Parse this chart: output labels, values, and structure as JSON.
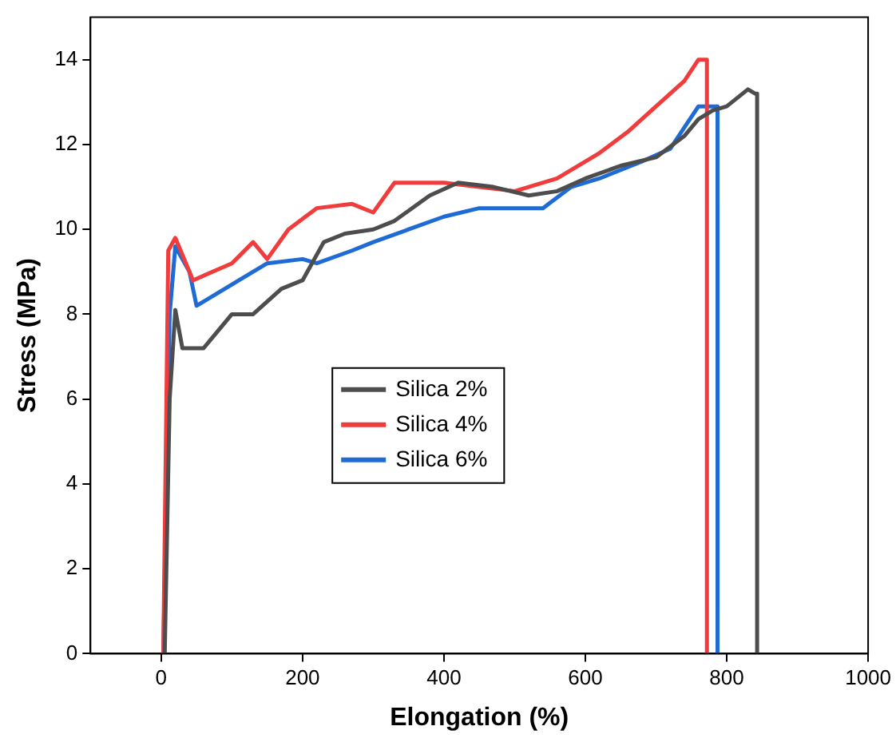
{
  "chart_data": {
    "type": "line",
    "xlabel": "Elongation (%)",
    "ylabel": "Stress (MPa)",
    "xlim": [
      -100,
      1000
    ],
    "xticks": [
      0,
      200,
      400,
      600,
      800,
      1000
    ],
    "ylim": [
      0,
      15
    ],
    "yticks": [
      0,
      2,
      4,
      6,
      8,
      10,
      12,
      14
    ],
    "grid": false,
    "legend": "center",
    "marker": "none",
    "line_style": "solid",
    "series": [
      {
        "name": "Silica 2%",
        "color": "#4d4d4d",
        "x": [
          5,
          12,
          20,
          30,
          60,
          80,
          100,
          130,
          170,
          200,
          230,
          260,
          300,
          330,
          380,
          420,
          470,
          520,
          560,
          600,
          650,
          700,
          740,
          760,
          780,
          800,
          830,
          840,
          843,
          843
        ],
        "values": [
          0,
          6,
          8.1,
          7.2,
          7.2,
          7.6,
          8,
          8,
          8.6,
          8.8,
          9.7,
          9.9,
          10,
          10.2,
          10.8,
          11.1,
          11,
          10.8,
          10.9,
          11.2,
          11.5,
          11.7,
          12.2,
          12.6,
          12.8,
          12.9,
          13.3,
          13.2,
          13.2,
          0
        ]
      },
      {
        "name": "Silica 4%",
        "color": "#f03c3c",
        "x": [
          3,
          10,
          20,
          45,
          100,
          130,
          150,
          180,
          220,
          270,
          300,
          330,
          400,
          450,
          500,
          560,
          620,
          660,
          700,
          740,
          760,
          770,
          772,
          772
        ],
        "values": [
          0,
          9.5,
          9.8,
          8.8,
          9.2,
          9.7,
          9.3,
          10,
          10.5,
          10.6,
          10.4,
          11.1,
          11.1,
          11,
          10.9,
          11.2,
          11.8,
          12.3,
          12.9,
          13.5,
          14,
          14,
          14,
          0
        ]
      },
      {
        "name": "Silica 6%",
        "color": "#1f6bd6",
        "x": [
          3,
          12,
          20,
          40,
          50,
          80,
          110,
          150,
          200,
          220,
          270,
          300,
          350,
          400,
          450,
          500,
          540,
          580,
          620,
          680,
          720,
          740,
          760,
          780,
          785,
          787,
          787
        ],
        "values": [
          0,
          8,
          9.6,
          9,
          8.2,
          8.5,
          8.8,
          9.2,
          9.3,
          9.2,
          9.5,
          9.7,
          10,
          10.3,
          10.5,
          10.5,
          10.5,
          11,
          11.2,
          11.6,
          11.9,
          12.4,
          12.9,
          12.9,
          12.9,
          12.9,
          0
        ]
      }
    ]
  }
}
